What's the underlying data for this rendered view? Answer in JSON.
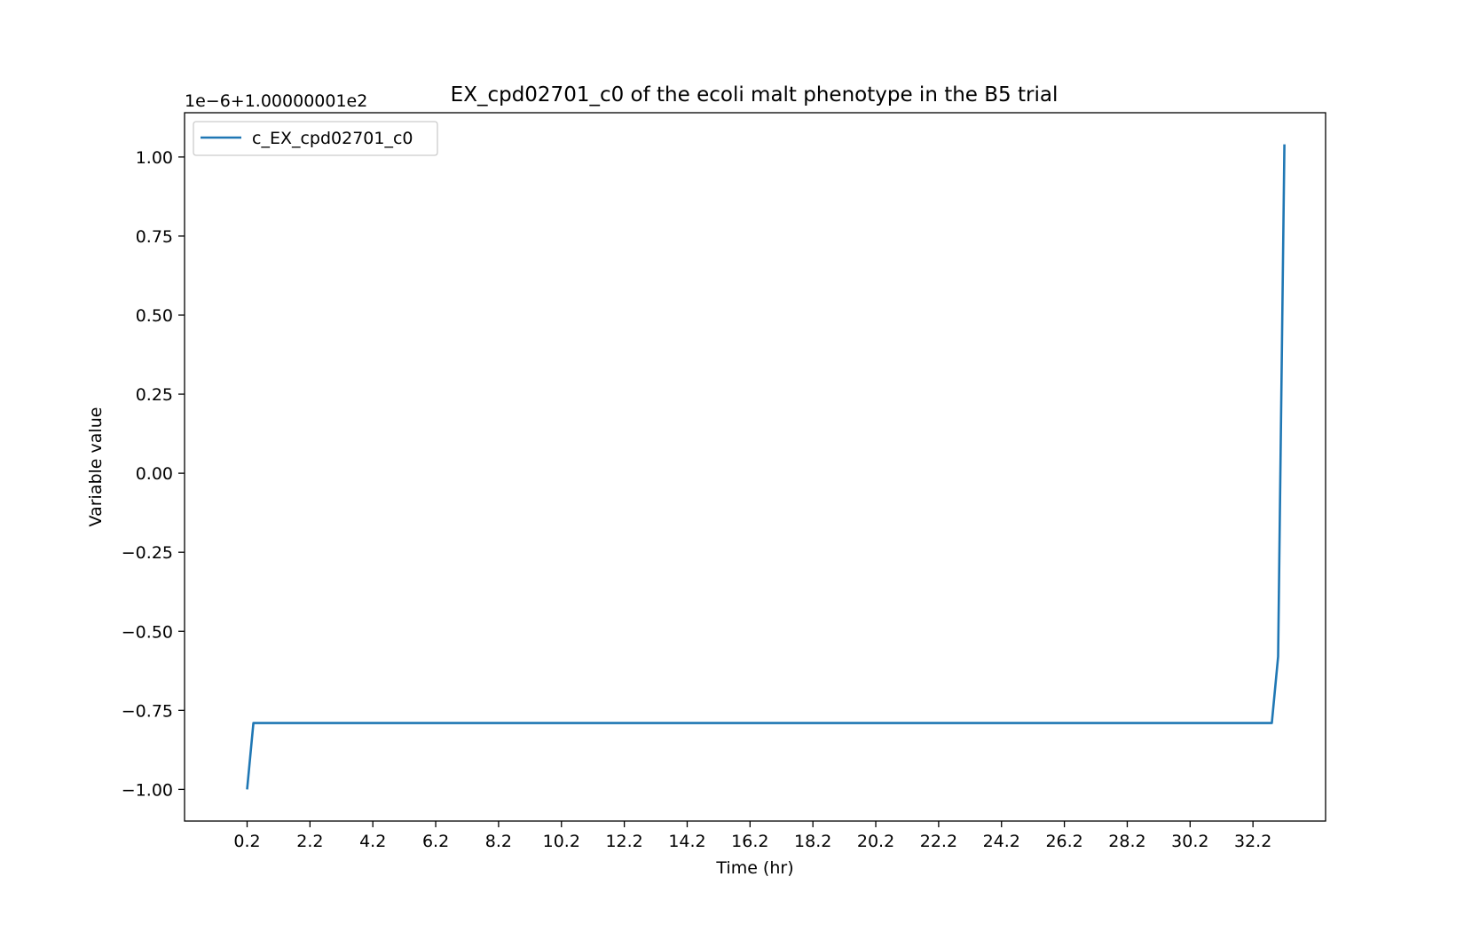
{
  "chart_data": {
    "type": "line",
    "title": "EX_cpd02701_c0 of the ecoli malt phenotype in the B5 trial",
    "xlabel": "Time (hr)",
    "ylabel": "Variable value",
    "offset_text": "1e−6+1.00000001e2",
    "xlim": [
      -1.79,
      34.51
    ],
    "ylim": [
      -1.1,
      1.14
    ],
    "x_ticks": [
      0.2,
      2.2,
      4.2,
      6.2,
      8.2,
      10.2,
      12.2,
      14.2,
      16.2,
      18.2,
      20.2,
      22.2,
      24.2,
      26.2,
      28.2,
      30.2,
      32.2
    ],
    "x_tick_labels": [
      "0.2",
      "2.2",
      "4.2",
      "6.2",
      "8.2",
      "10.2",
      "12.2",
      "14.2",
      "16.2",
      "18.2",
      "20.2",
      "22.2",
      "24.2",
      "26.2",
      "28.2",
      "30.2",
      "32.2"
    ],
    "y_ticks": [
      1.0,
      0.75,
      0.5,
      0.25,
      0.0,
      -0.25,
      -0.5,
      -0.75,
      -1.0
    ],
    "y_tick_labels": [
      "1.00",
      "0.75",
      "0.50",
      "0.25",
      "0.00",
      "−0.25",
      "−0.50",
      "−0.75",
      "−1.00"
    ],
    "grid": false,
    "legend_position": "top-left",
    "series": [
      {
        "name": "c_EX_cpd02701_c0",
        "color": "#1f77b4",
        "x": [
          0.2,
          0.4,
          32.8,
          33.0,
          33.2
        ],
        "y": [
          -1.0,
          -0.79,
          -0.79,
          -0.58,
          1.04
        ]
      }
    ]
  }
}
